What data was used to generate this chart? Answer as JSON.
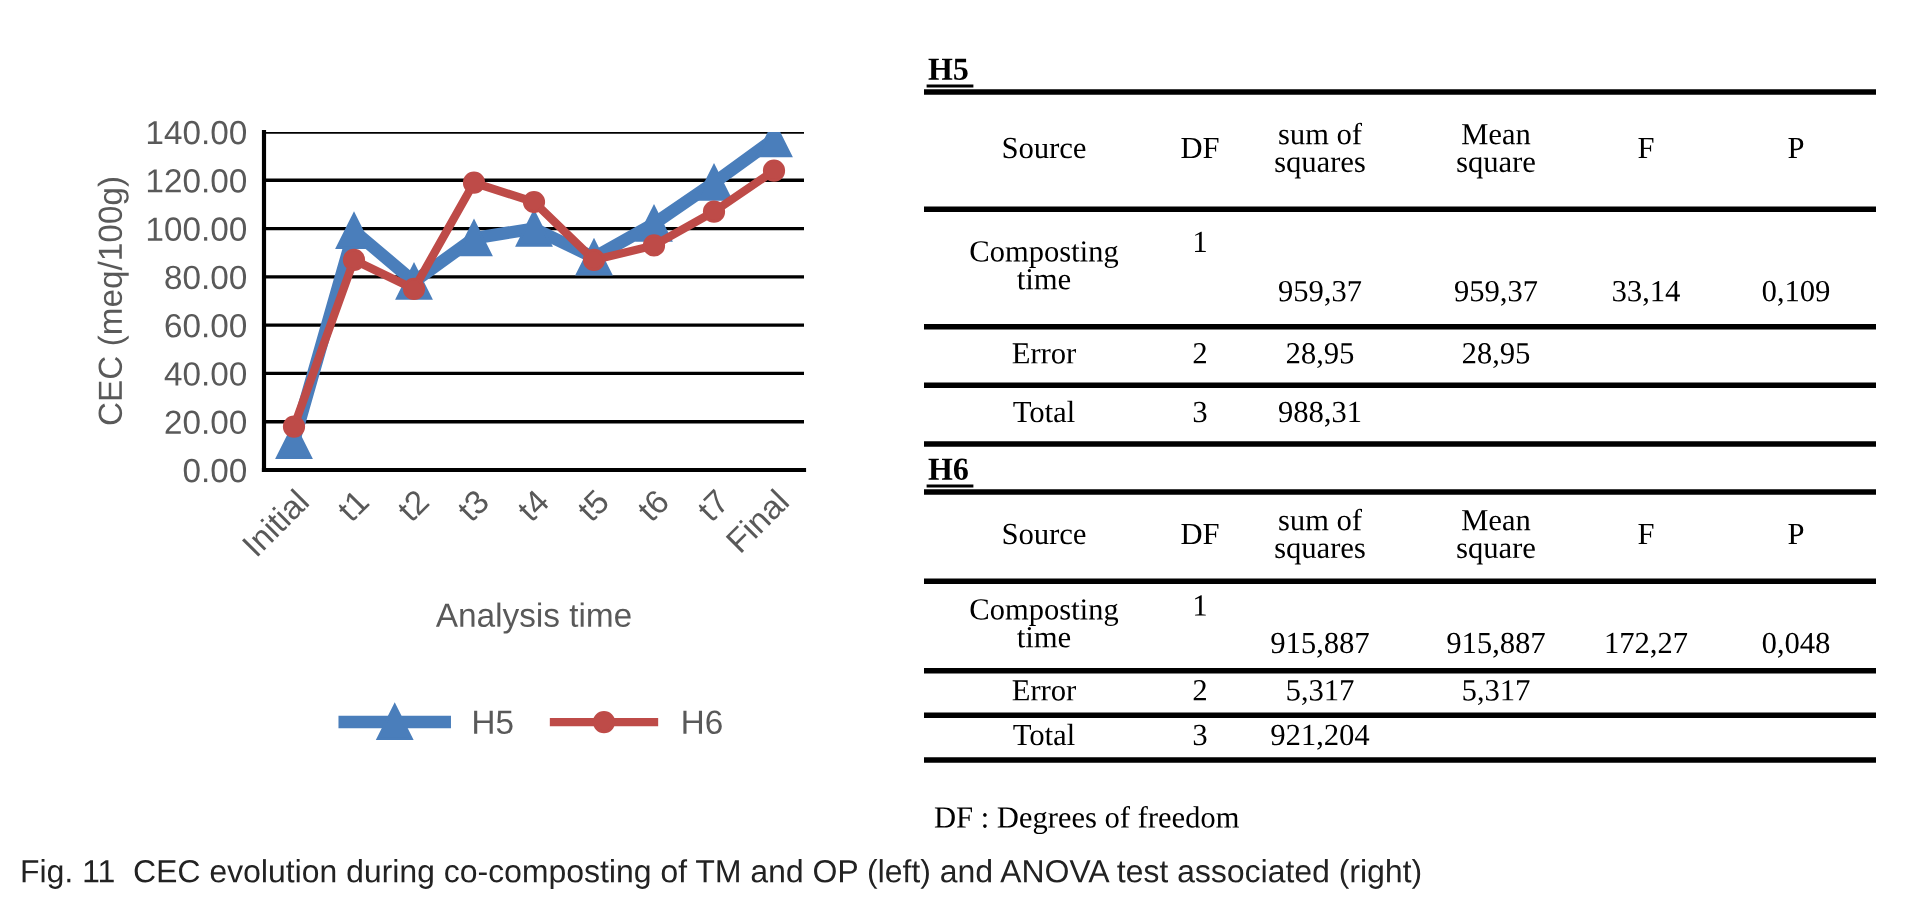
{
  "chart_data": [
    {
      "type": "line",
      "xlabel": "Analysis time",
      "ylabel": "CEC (meq/100g)",
      "categories": [
        "Initial",
        "t1",
        "t2",
        "t3",
        "t4",
        "t5",
        "t6",
        "t7",
        "Final"
      ],
      "series": [
        {
          "name": "H5",
          "color": "#4a7ebb",
          "marker": "triangle",
          "values": [
            12,
            99,
            78,
            96,
            100,
            88,
            102,
            119,
            137
          ]
        },
        {
          "name": "H6",
          "color": "#be4b48",
          "marker": "circle",
          "values": [
            18,
            87,
            75,
            119,
            111,
            87,
            93,
            107,
            124
          ]
        }
      ],
      "ylim": [
        0,
        140
      ],
      "yticks": [
        {
          "value": 0,
          "label": "0.00"
        },
        {
          "value": 20,
          "label": "20.00"
        },
        {
          "value": 40,
          "label": "40.00"
        },
        {
          "value": 60,
          "label": "60.00"
        },
        {
          "value": 80,
          "label": "80.00"
        },
        {
          "value": 100,
          "label": "100.00"
        },
        {
          "value": 120,
          "label": "120.00"
        },
        {
          "value": 140,
          "label": "140.00"
        }
      ],
      "grid": "y",
      "legend": "bottom",
      "line_style": "solid",
      "annotations": [
        "Fig. 11  CEC evolution during co-composting of TM and OP (left) and ANOVA test associated (right)"
      ]
    },
    {
      "type": "other",
      "title": "H5",
      "categories": [
        "Source",
        "DF",
        "sum of squares",
        "Mean square",
        "F",
        "P"
      ],
      "y_categories": [
        "Composting time",
        "Error",
        "Total"
      ],
      "cell_labels": [
        [
          "1",
          "959,37",
          "959,37",
          "33,14",
          "0,109"
        ],
        [
          "2",
          "28,95",
          "28,95",
          null,
          null
        ],
        [
          "3",
          "988,31",
          null,
          null,
          null
        ]
      ]
    },
    {
      "type": "other",
      "title": "H6",
      "categories": [
        "Source",
        "DF",
        "sum of squares",
        "Mean square",
        "F",
        "P"
      ],
      "y_categories": [
        "Composting time",
        "Error",
        "Total"
      ],
      "cell_labels": [
        [
          "1",
          "915,887",
          "915,887",
          "172,27",
          "0,048"
        ],
        [
          "2",
          "5,317",
          "5,317",
          null,
          null
        ],
        [
          "3",
          "921,204",
          null,
          null,
          null
        ]
      ],
      "annotations": [
        "DF : Degrees of freedom"
      ]
    }
  ]
}
